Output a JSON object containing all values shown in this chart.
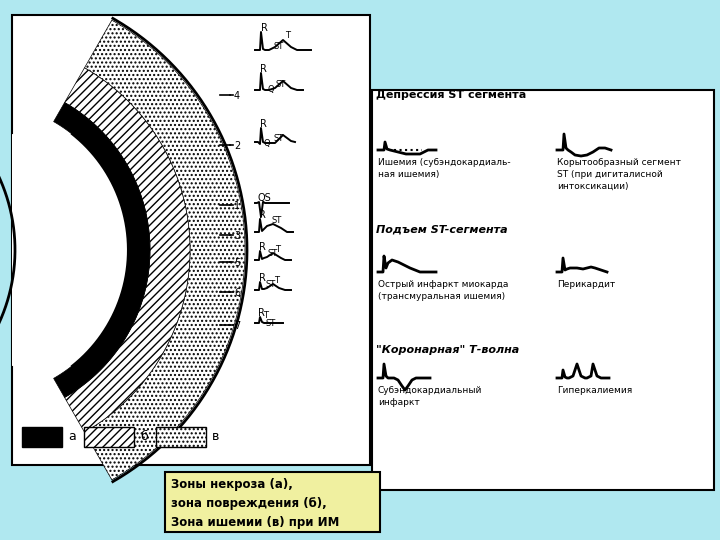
{
  "bg_color": "#b0e8f0",
  "caption_bg": "#f0f0a0",
  "caption_text": "Зоны некроза (а),\nзона повреждения (б),\nЗона ишемии (в) при ИМ",
  "right_title1": "Депрессия ST сегмента",
  "right_title2": "Подъем ST-сегмента",
  "right_title3": "\"Коронарная\" Т-волна",
  "label1a": "Ишемия (субэндокардиаль-\nная ишемия)",
  "label1b": "Корытообразный сегмент\nST (при дигиталисной\nинтоксикации)",
  "label2a": "Острый инфаркт миокарда\n(трансмуральная ишемия)",
  "label2b": "Перикардит",
  "label3a": "Субэндокардиальный\nинфаркт",
  "label3b": "Гиперкалиемия"
}
